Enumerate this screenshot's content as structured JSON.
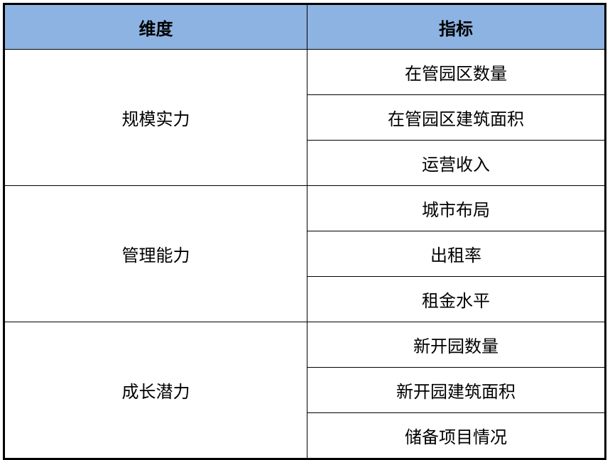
{
  "header": {
    "dimension": "维度",
    "indicator": "指标",
    "background_color": "#8db3e2"
  },
  "groups": [
    {
      "dimension": "规模实力",
      "indicators": [
        "在管园区数量",
        "在管园区建筑面积",
        "运营收入"
      ]
    },
    {
      "dimension": "管理能力",
      "indicators": [
        "城市布局",
        "出租率",
        "租金水平"
      ]
    },
    {
      "dimension": "成长潜力",
      "indicators": [
        "新开园数量",
        "新开园建筑面积",
        "储备项目情况"
      ]
    }
  ]
}
